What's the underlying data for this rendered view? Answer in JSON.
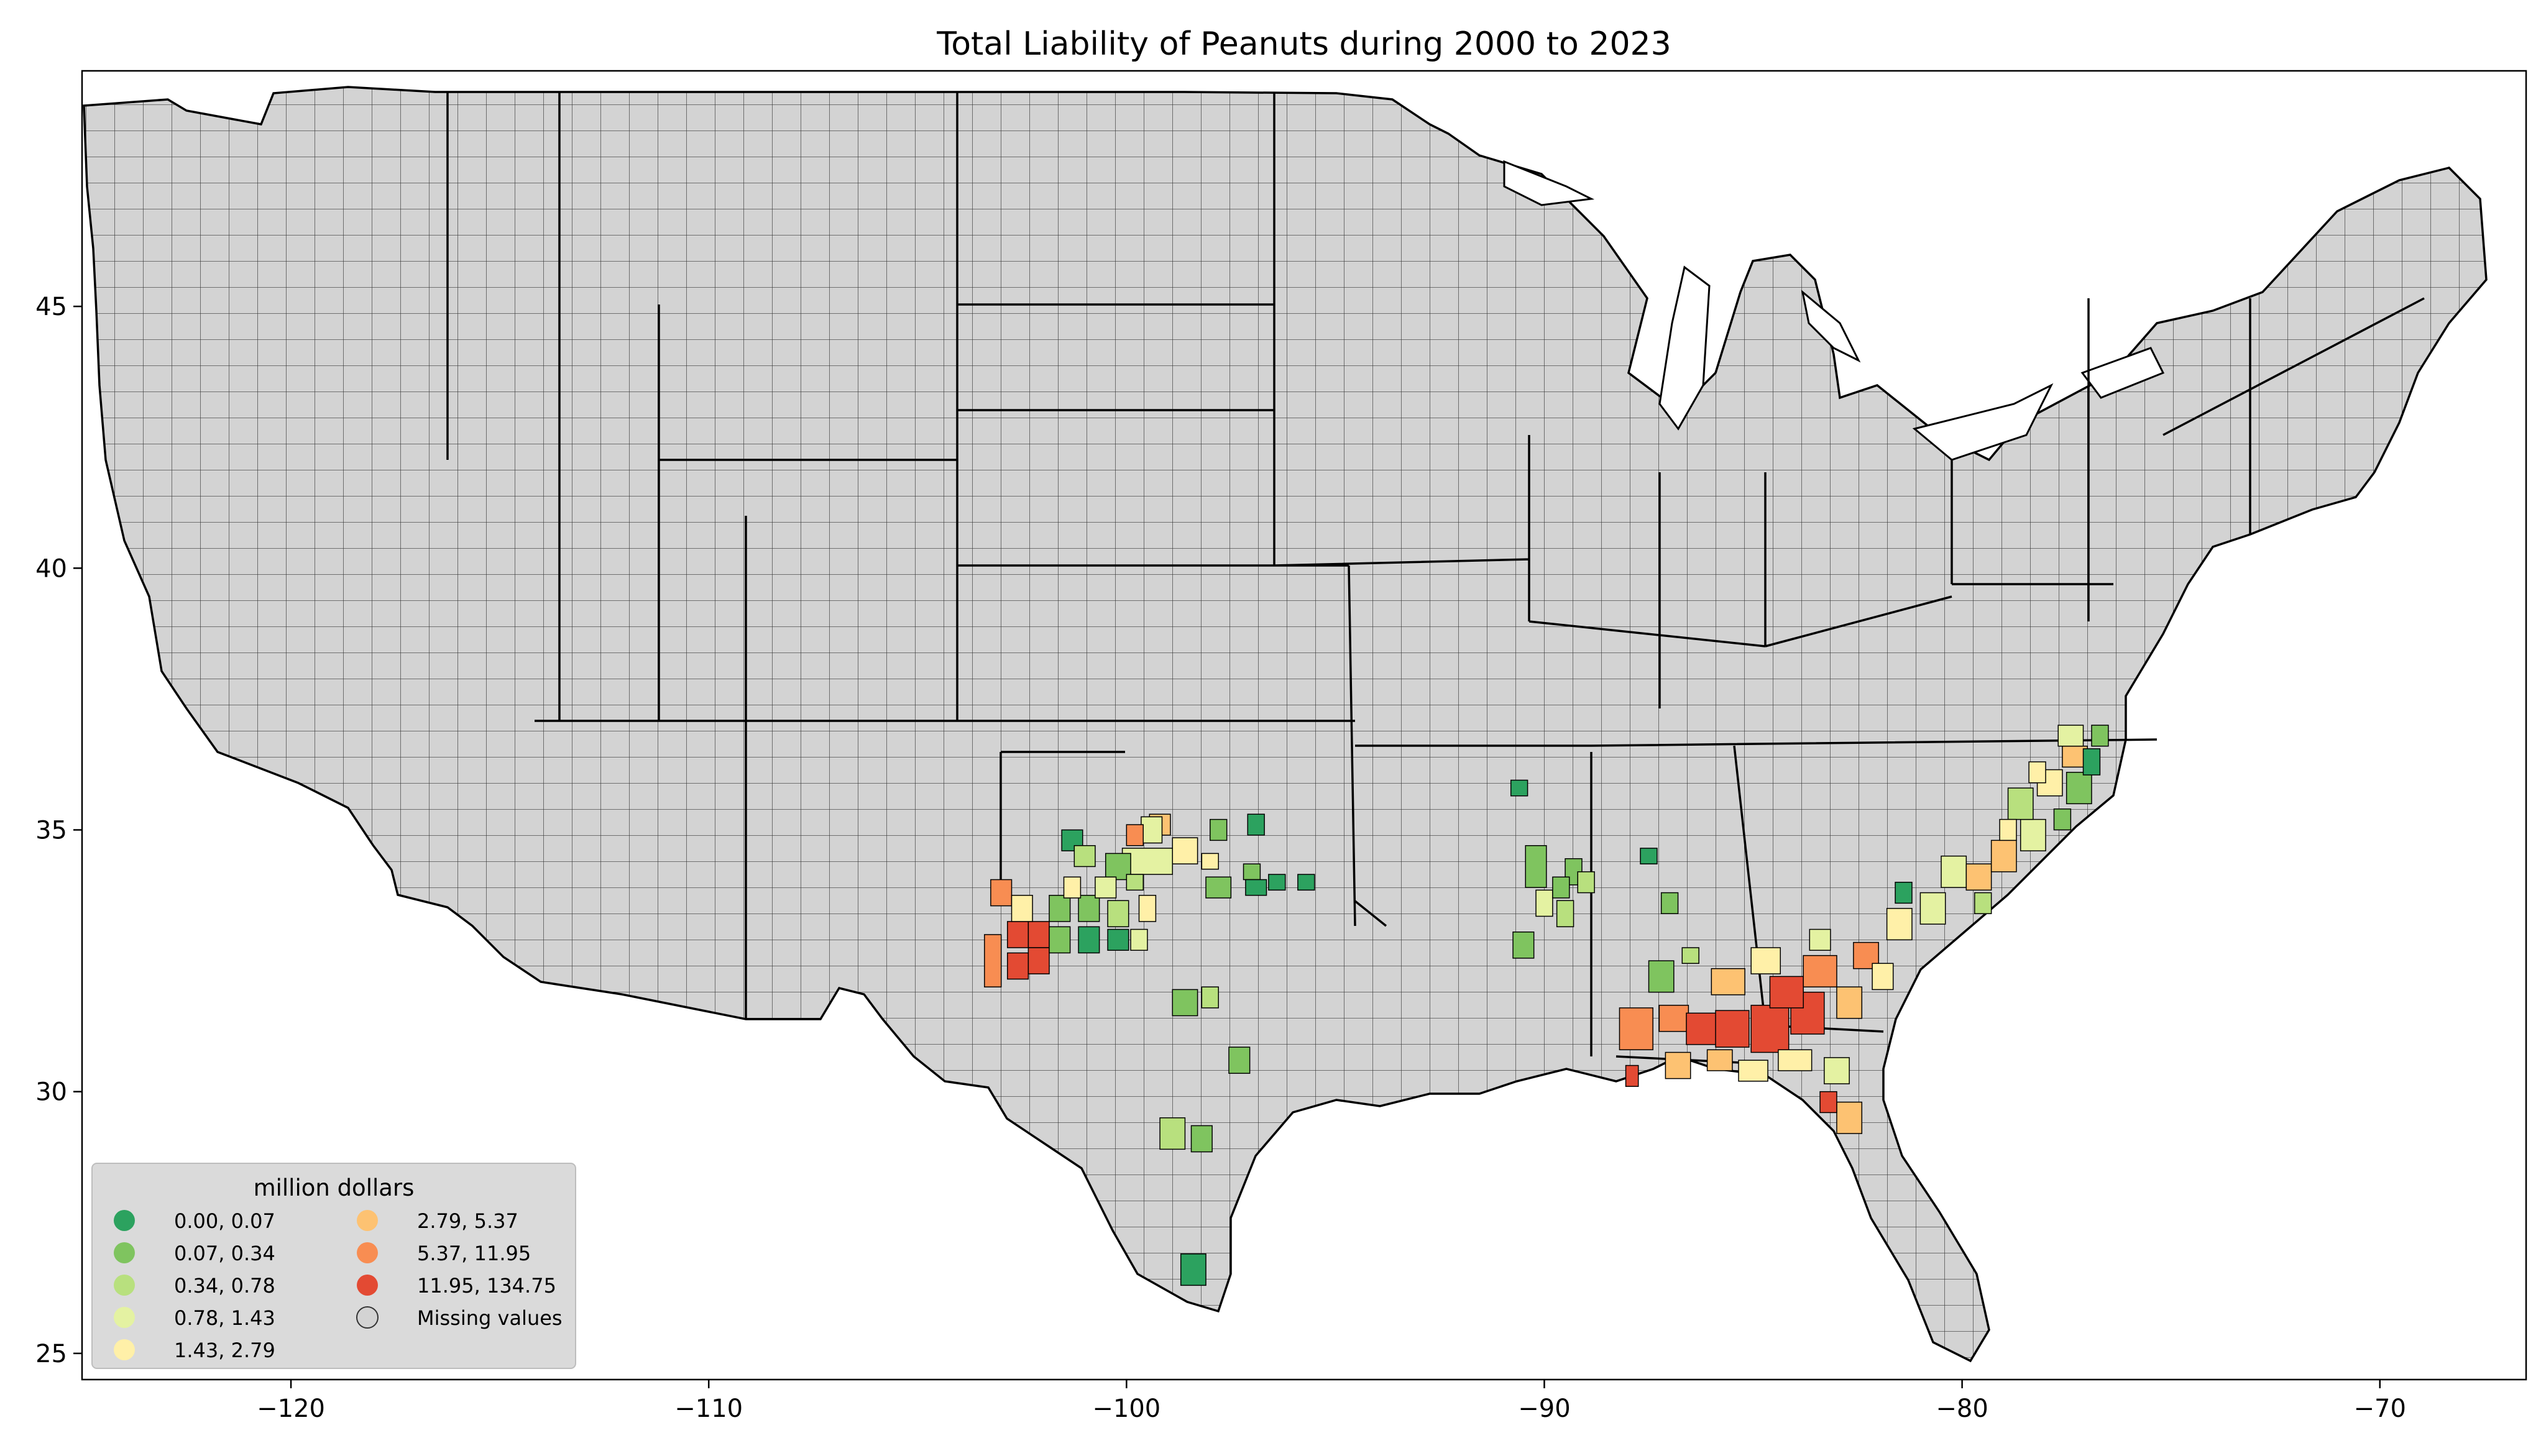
{
  "title": "Total Liability of Peanuts during 2000 to 2023",
  "axes": {
    "lon_range": [
      -125,
      -66.5
    ],
    "lat_range": [
      24.5,
      49.5
    ],
    "x_ticks": [
      {
        "value": -120,
        "label": "−120"
      },
      {
        "value": -110,
        "label": "−110"
      },
      {
        "value": -100,
        "label": "−100"
      },
      {
        "value": -90,
        "label": "−90"
      },
      {
        "value": -80,
        "label": "−80"
      },
      {
        "value": -70,
        "label": "−70"
      }
    ],
    "y_ticks": [
      {
        "value": 25,
        "label": "25"
      },
      {
        "value": 30,
        "label": "30"
      },
      {
        "value": 35,
        "label": "35"
      },
      {
        "value": 40,
        "label": "40"
      },
      {
        "value": 45,
        "label": "45"
      }
    ]
  },
  "map": {
    "base_fill": "#d3d3d3",
    "border_color": "#000000"
  },
  "legend": {
    "title": "million dollars",
    "placement": "lower-left",
    "entries": [
      {
        "label": "0.00,   0.07",
        "color": "#2ca25f"
      },
      {
        "label": "0.07,   0.34",
        "color": "#7fc45f"
      },
      {
        "label": "0.34,   0.78",
        "color": "#b8e07e"
      },
      {
        "label": "0.78,   1.43",
        "color": "#e4f2a2"
      },
      {
        "label": "1.43,   2.79",
        "color": "#fff0a8"
      },
      {
        "label": "2.79,   5.37",
        "color": "#fdc272"
      },
      {
        "label": "5.37,  11.95",
        "color": "#f88d52"
      },
      {
        "label": "11.95, 134.75",
        "color": "#e34a33"
      },
      {
        "label": "Missing values",
        "color": "#d3d3d3"
      }
    ]
  }
}
